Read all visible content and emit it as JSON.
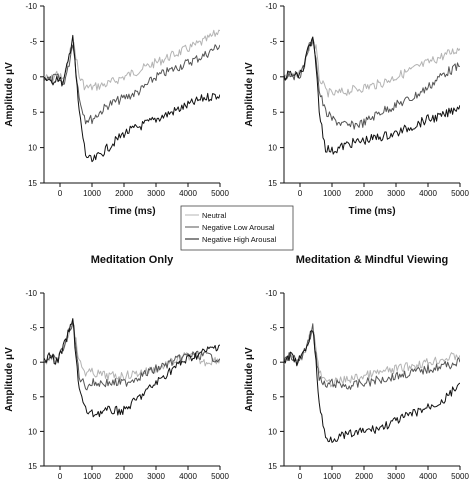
{
  "legend": {
    "entries": [
      {
        "label": "Neutral",
        "color": "#b4b4b4"
      },
      {
        "label": "Negative Low Arousal",
        "color": "#555555"
      },
      {
        "label": "Negative High Arousal",
        "color": "#111111"
      }
    ]
  },
  "chart_data": [
    {
      "type": "line",
      "title": "",
      "xlabel": "Time (ms)",
      "ylabel": "Amplitude μV",
      "xlim": [
        -500,
        5000
      ],
      "ylim": [
        15,
        -10
      ],
      "y_inverted": true,
      "x_ticks": [
        "0",
        "1000",
        "2000",
        "3000",
        "4000",
        "5000"
      ],
      "y_ticks": [
        "-10",
        "-5",
        "0",
        "5",
        "10",
        "15"
      ],
      "series": [
        {
          "name": "Neutral",
          "color": "#b4b4b4",
          "x": [
            -500,
            -300,
            -100,
            100,
            250,
            400,
            500,
            600,
            800,
            1000,
            1500,
            2000,
            2500,
            3000,
            3500,
            4000,
            4500,
            5000
          ],
          "y": [
            0,
            0.5,
            -0.5,
            0.5,
            -2,
            -5,
            -3,
            0,
            1.5,
            1.5,
            1,
            0,
            -1,
            -2,
            -3,
            -4,
            -5,
            -6.5
          ]
        },
        {
          "name": "Negative Low Arousal",
          "color": "#555555",
          "x": [
            -500,
            -300,
            -100,
            100,
            250,
            400,
            500,
            600,
            800,
            1000,
            1500,
            2000,
            2500,
            3000,
            3500,
            4000,
            4500,
            5000
          ],
          "y": [
            0,
            0.5,
            0,
            1,
            -1,
            -5,
            -1,
            3,
            6,
            6,
            4,
            3,
            2,
            0,
            -1,
            -2,
            -3,
            -4.5
          ]
        },
        {
          "name": "Negative High Arousal",
          "color": "#111111",
          "x": [
            -500,
            -300,
            -100,
            100,
            250,
            400,
            500,
            600,
            800,
            1000,
            1500,
            2000,
            2500,
            3000,
            3500,
            4000,
            4500,
            5000
          ],
          "y": [
            0,
            1,
            0,
            1,
            -2,
            -6,
            0,
            5,
            11,
            12,
            10,
            8,
            7,
            6,
            5,
            4,
            3,
            2.5
          ]
        }
      ]
    },
    {
      "type": "line",
      "title": "",
      "xlabel": "Time (ms)",
      "ylabel": "Amplitude μV",
      "xlim": [
        -500,
        5000
      ],
      "ylim": [
        15,
        -10
      ],
      "y_inverted": true,
      "x_ticks": [
        "0",
        "1000",
        "2000",
        "3000",
        "4000",
        "5000"
      ],
      "y_ticks": [
        "-10",
        "-5",
        "0",
        "5",
        "10",
        "15"
      ],
      "series": [
        {
          "name": "Neutral",
          "color": "#b4b4b4",
          "x": [
            -500,
            -300,
            -100,
            100,
            250,
            400,
            500,
            600,
            800,
            1000,
            1500,
            2000,
            2500,
            3000,
            3500,
            4000,
            4500,
            5000
          ],
          "y": [
            0,
            -0.5,
            0,
            -1,
            -4,
            -5,
            -4,
            0,
            2,
            2.5,
            2,
            1.5,
            1,
            0,
            -1,
            -2,
            -3,
            -4
          ]
        },
        {
          "name": "Negative Low Arousal",
          "color": "#555555",
          "x": [
            -500,
            -300,
            -100,
            100,
            250,
            400,
            500,
            600,
            800,
            1000,
            1500,
            2000,
            2500,
            3000,
            3500,
            4000,
            4500,
            5000
          ],
          "y": [
            0,
            -0.5,
            0,
            -1,
            -4,
            -5,
            -3,
            2,
            5,
            6,
            7,
            6.5,
            5,
            4,
            3,
            1.5,
            -0.5,
            -1.5
          ]
        },
        {
          "name": "Negative High Arousal",
          "color": "#111111",
          "x": [
            -500,
            -300,
            -100,
            100,
            250,
            400,
            500,
            600,
            800,
            1000,
            1500,
            2000,
            2500,
            3000,
            3500,
            4000,
            4500,
            5000
          ],
          "y": [
            0,
            -0.5,
            0,
            -1,
            -4,
            -5,
            -2,
            5,
            10,
            10.5,
            9.5,
            9,
            8.5,
            8,
            7,
            6,
            5.5,
            4
          ]
        }
      ]
    },
    {
      "type": "line",
      "title": "Meditation Only",
      "xlabel": "",
      "ylabel": "Amplitude μV",
      "xlim": [
        -500,
        5000
      ],
      "ylim": [
        15,
        -10
      ],
      "y_inverted": true,
      "x_ticks": [
        "0",
        "1000",
        "2000",
        "3000",
        "4000",
        "5000"
      ],
      "y_ticks": [
        "-10",
        "-5",
        "0",
        "5",
        "10",
        "15"
      ],
      "series": [
        {
          "name": "Neutral",
          "color": "#b4b4b4",
          "x": [
            -500,
            -300,
            -100,
            100,
            250,
            400,
            500,
            600,
            800,
            1000,
            1500,
            2000,
            2500,
            3000,
            3500,
            4000,
            4500,
            5000
          ],
          "y": [
            0,
            -1,
            0,
            -2,
            -4,
            -6,
            -3,
            0,
            1.5,
            1.5,
            2,
            2,
            1.5,
            1,
            0,
            -1,
            0,
            -0.5
          ]
        },
        {
          "name": "Negative Low Arousal",
          "color": "#555555",
          "x": [
            -500,
            -300,
            -100,
            100,
            250,
            400,
            500,
            600,
            800,
            1000,
            1500,
            2000,
            2500,
            3000,
            3500,
            4000,
            4500,
            5000
          ],
          "y": [
            0,
            -1,
            0,
            -2,
            -4,
            -6,
            -2,
            2,
            3.5,
            3,
            3,
            3,
            2,
            1,
            0,
            -1,
            -1,
            -0.5
          ]
        },
        {
          "name": "Negative High Arousal",
          "color": "#111111",
          "x": [
            -500,
            -300,
            -100,
            100,
            250,
            400,
            500,
            600,
            800,
            1000,
            1500,
            2000,
            2500,
            3000,
            3500,
            4000,
            4500,
            5000
          ],
          "y": [
            0,
            -1,
            0,
            -2,
            -4,
            -6,
            -1,
            4,
            7,
            7.5,
            7,
            7,
            5,
            3,
            1,
            -0.5,
            -1.5,
            -2.5
          ]
        }
      ]
    },
    {
      "type": "line",
      "title": "Meditation & Mindful Viewing",
      "xlabel": "",
      "ylabel": "Amplitude μV",
      "xlim": [
        -500,
        5000
      ],
      "ylim": [
        15,
        -10
      ],
      "y_inverted": true,
      "x_ticks": [
        "0",
        "1000",
        "2000",
        "3000",
        "4000",
        "5000"
      ],
      "y_ticks": [
        "-10",
        "-5",
        "0",
        "5",
        "10",
        "15"
      ],
      "series": [
        {
          "name": "Neutral",
          "color": "#b4b4b4",
          "x": [
            -500,
            -300,
            -100,
            100,
            250,
            400,
            500,
            600,
            800,
            1000,
            1500,
            2000,
            2500,
            3000,
            3500,
            4000,
            4500,
            5000
          ],
          "y": [
            0,
            -1,
            0,
            -1,
            -3,
            -5,
            -2,
            1.5,
            3,
            3,
            2.5,
            2,
            1.5,
            1,
            0.5,
            0,
            -0.5,
            -1
          ]
        },
        {
          "name": "Negative Low Arousal",
          "color": "#555555",
          "x": [
            -500,
            -300,
            -100,
            100,
            250,
            400,
            500,
            600,
            800,
            1000,
            1500,
            2000,
            2500,
            3000,
            3500,
            4000,
            4500,
            5000
          ],
          "y": [
            0,
            -1,
            0,
            -1,
            -3,
            -5,
            -1,
            2.5,
            3.5,
            3,
            3.5,
            3,
            2.5,
            2,
            1.5,
            1,
            0.5,
            0
          ]
        },
        {
          "name": "Negative High Arousal",
          "color": "#111111",
          "x": [
            -500,
            -300,
            -100,
            100,
            250,
            400,
            500,
            600,
            800,
            1000,
            1500,
            2000,
            2500,
            3000,
            3500,
            4000,
            4500,
            5000
          ],
          "y": [
            0,
            -1,
            0,
            -1,
            -3,
            -5,
            0,
            6,
            11,
            11,
            10.5,
            10,
            9.5,
            8.5,
            7.5,
            6.5,
            5.5,
            3
          ]
        }
      ]
    }
  ]
}
